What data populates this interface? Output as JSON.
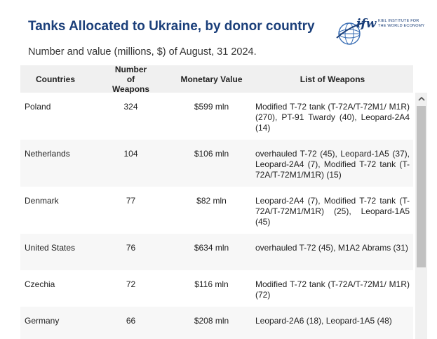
{
  "header": {
    "title": "Tanks Allocated to Ukraine, by donor country",
    "subtitle": "Number and value (millions, $) of August, 31 2024."
  },
  "logo": {
    "main": "ifw",
    "line1": "KIEL INSTITUTE FOR",
    "line2": "THE WORLD ECONOMY"
  },
  "table": {
    "headers": {
      "country": "Countries",
      "number": "Number of Weapons",
      "value": "Monetary Value",
      "weapons": "List of Weapons"
    },
    "rows": [
      {
        "country": "Poland",
        "number": "324",
        "value": "$599 mln",
        "weapons": "Modified T-72 tank (T-72A/T-72M1/ M1R) (270), PT-91 Twardy (40), Leopard-2A4 (14)"
      },
      {
        "country": "Netherlands",
        "number": "104",
        "value": "$106 mln",
        "weapons": "overhauled T-72 (45), Leopard-1A5 (37), Leopard-2A4 (7), Modified T-72 tank (T-72A/T-72M1/M1R) (15)"
      },
      {
        "country": "Denmark",
        "number": "77",
        "value": "$82 mln",
        "weapons": "Leopard-2A4 (7), Modified T-72 tank (T-72A/T-72M1/M1R) (25), Leopard-1A5 (45)"
      },
      {
        "country": "United States",
        "number": "76",
        "value": "$634 mln",
        "weapons": "overhauled T-72 (45), M1A2 Abrams (31)"
      },
      {
        "country": "Czechia",
        "number": "72",
        "value": "$116 mln",
        "weapons": "Modified T-72 tank (T-72A/T-72M1/ M1R) (72)"
      },
      {
        "country": "Germany",
        "number": "66",
        "value": "$208 mln",
        "weapons": "Leopard-2A6 (18), Leopard-1A5 (48)"
      }
    ]
  },
  "scrollbar": {
    "up_icon": "chevron-up-icon"
  }
}
